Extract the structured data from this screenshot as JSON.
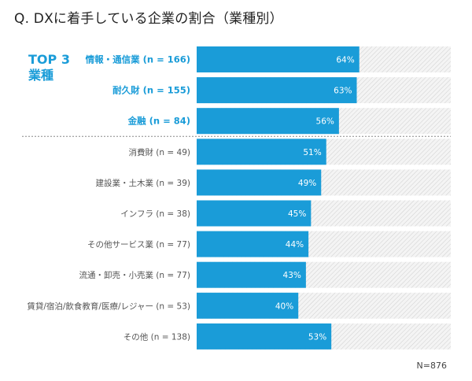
{
  "title": "Q. DXに着手している企業の割合（業種別）",
  "top3_label": [
    "TOP 3",
    "業種"
  ],
  "n_total": "N=876",
  "colors": {
    "accent": "#1a9cd8",
    "bar_remainder": "#f3f3f3",
    "hatch": "#c9c9c9",
    "divider": "#888888",
    "top_label": "#1a9cd8",
    "other_label": "#555555"
  },
  "chart_data": {
    "type": "bar",
    "orientation": "horizontal",
    "categories": [
      "情報・通信業 (n = 166)",
      "耐久財 (n = 155)",
      "金融 (n = 84)",
      "消費財 (n = 49)",
      "建設業・土木業 (n = 39)",
      "インフラ (n = 38)",
      "その他サービス業 (n = 77)",
      "流通・卸売・小売業 (n = 77)",
      "賃貸/宿泊/飲食教育/医療/レジャー (n = 53)",
      "その他 (n = 138)"
    ],
    "values": [
      64,
      63,
      56,
      51,
      49,
      45,
      44,
      43,
      40,
      53
    ],
    "value_labels": [
      "64%",
      "63%",
      "56%",
      "51%",
      "49%",
      "45%",
      "44%",
      "43%",
      "40%",
      "53%"
    ],
    "highlight_top": 3,
    "xlim": [
      0,
      100
    ],
    "unit": "%"
  }
}
